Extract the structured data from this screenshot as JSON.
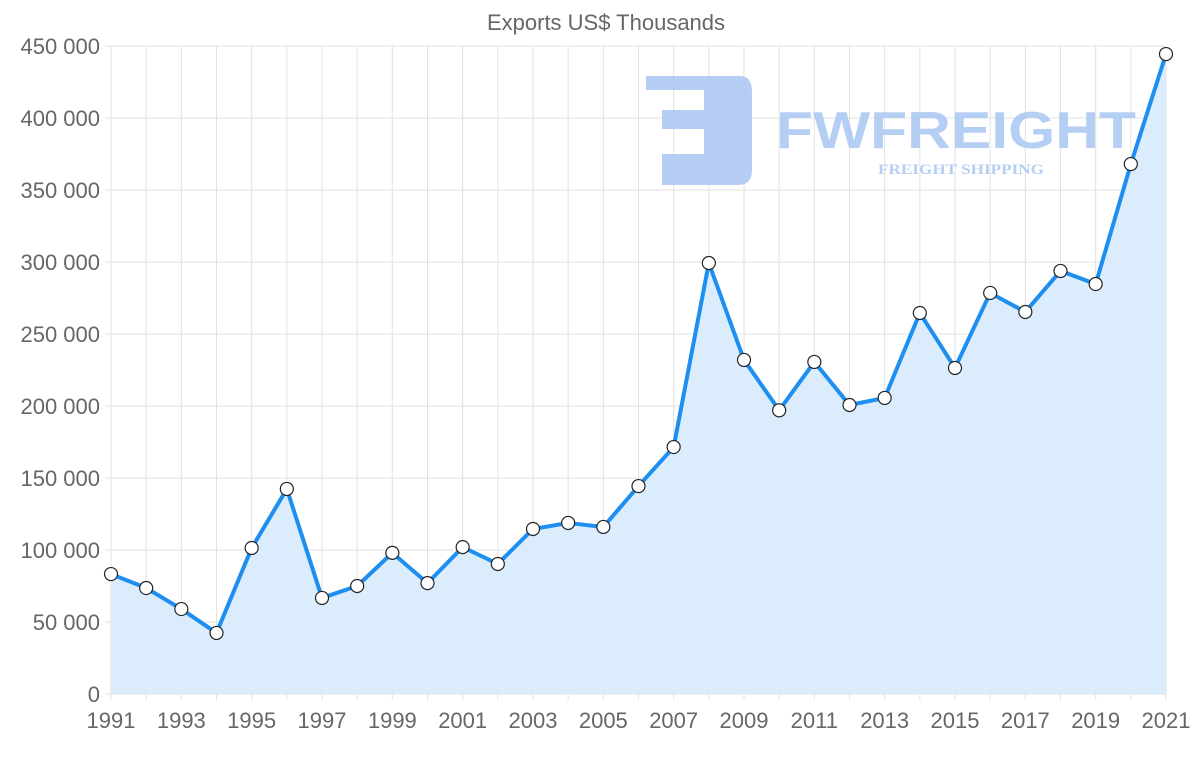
{
  "watermark": {
    "brand": "FWFREIGHT",
    "tagline": "FREIGHT SHIPPING"
  },
  "colors": {
    "line": "#1e8ff0",
    "fill": "#d9ecfd",
    "grid": "#e2e2e2",
    "text": "#666666",
    "logo": "#a9c6f2"
  },
  "chart_data": {
    "type": "area",
    "title": "Exports US$ Thousands",
    "xlabel": "",
    "ylabel": "",
    "x": [
      1991,
      1992,
      1993,
      1994,
      1995,
      1996,
      1997,
      1998,
      1999,
      2000,
      2001,
      2002,
      2003,
      2004,
      2005,
      2006,
      2007,
      2008,
      2009,
      2010,
      2011,
      2012,
      2013,
      2014,
      2015,
      2016,
      2017,
      2018,
      2019,
      2020,
      2021
    ],
    "values": [
      83300,
      73600,
      59000,
      42400,
      101400,
      142400,
      66700,
      75000,
      98000,
      77000,
      102000,
      90300,
      114600,
      118800,
      116000,
      144400,
      171500,
      299300,
      232000,
      197000,
      230600,
      200700,
      205600,
      264600,
      226400,
      278500,
      265300,
      293800,
      284700,
      368000,
      444400
    ],
    "xticks": [
      "1991",
      "1993",
      "1995",
      "1997",
      "1999",
      "2001",
      "2003",
      "2005",
      "2007",
      "2009",
      "2011",
      "2013",
      "2015",
      "2017",
      "2019",
      "2021"
    ],
    "yticks": [
      "0",
      "50 000",
      "100 000",
      "150 000",
      "200 000",
      "250 000",
      "300 000",
      "350 000",
      "400 000",
      "450 000"
    ],
    "ylim": [
      0,
      450000
    ],
    "xlim": [
      1991,
      2021
    ],
    "grid": true,
    "legend": "none"
  }
}
